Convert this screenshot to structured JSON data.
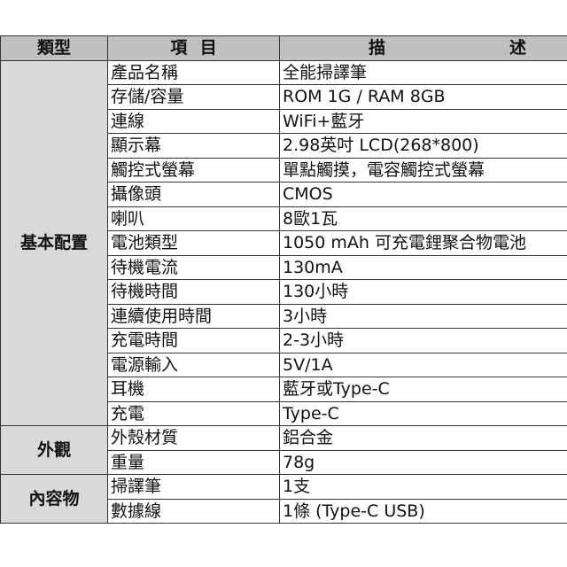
{
  "header": {
    "type": "類型",
    "item": "項 目",
    "desc_1": "描",
    "desc_2": "述"
  },
  "groups": [
    {
      "category": "基本配置",
      "rows": [
        {
          "item": "產品名稱",
          "desc": "全能掃譯筆"
        },
        {
          "item": "存儲/容量",
          "desc": "ROM 1G / RAM 8GB"
        },
        {
          "item": "連線",
          "desc": "WiFi+藍牙"
        },
        {
          "item": "顯示幕",
          "desc": "2.98英吋 LCD(268*800)"
        },
        {
          "item": "觸控式螢幕",
          "desc": "單點觸摸，電容觸控式螢幕"
        },
        {
          "item": "攝像頭",
          "desc": "CMOS"
        },
        {
          "item": "喇叭",
          "desc": "8歐1瓦"
        },
        {
          "item": "電池類型",
          "desc": "1050 mAh 可充電鋰聚合物電池"
        },
        {
          "item": "待機電流",
          "desc": "130mA"
        },
        {
          "item": "待機時間",
          "desc": "130小時"
        },
        {
          "item": "連續使用時間",
          "desc": "3小時"
        },
        {
          "item": "充電時間",
          "desc": "2-3小時"
        },
        {
          "item": "電源輸入",
          "desc": "5V/1A"
        },
        {
          "item": "耳機",
          "desc": "藍牙或Type-C"
        },
        {
          "item": "充電",
          "desc": "Type-C"
        }
      ]
    },
    {
      "category": "外觀",
      "rows": [
        {
          "item": "外殼材質",
          "desc": "鋁合金"
        },
        {
          "item": "重量",
          "desc": "78g"
        }
      ]
    },
    {
      "category": "內容物",
      "rows": [
        {
          "item": "掃譯筆",
          "desc": "1支"
        },
        {
          "item": "數據線",
          "desc": "1條 (Type-C USB)"
        }
      ]
    }
  ]
}
